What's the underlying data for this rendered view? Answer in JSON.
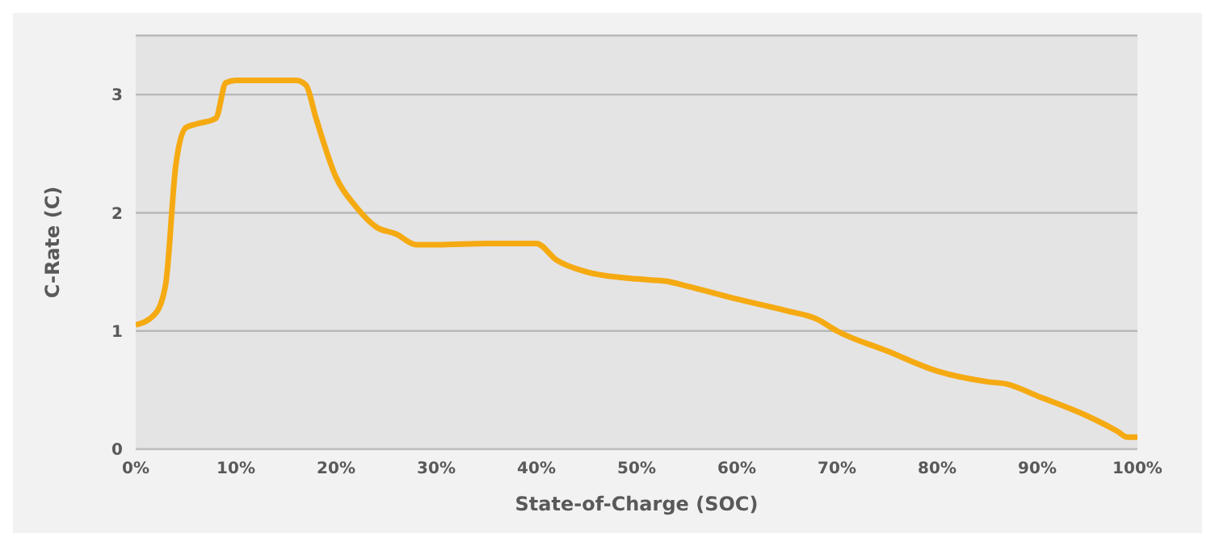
{
  "chart_data": {
    "type": "line",
    "xlabel": "State-of-Charge  (SOC)",
    "ylabel": "C-Rate (C)",
    "x": [
      0,
      2,
      3,
      4,
      5,
      6,
      8,
      9,
      10,
      16,
      17,
      18,
      20,
      22,
      24,
      26,
      28,
      30,
      35,
      40,
      42,
      45,
      50,
      53,
      55,
      60,
      65,
      68,
      70,
      75,
      80,
      85,
      87,
      90,
      95,
      98,
      99,
      100
    ],
    "series": [
      {
        "color": "#f5aa12",
        "values": [
          1.05,
          1.15,
          1.4,
          2.4,
          2.72,
          2.75,
          2.8,
          3.1,
          3.12,
          3.12,
          3.08,
          2.8,
          2.3,
          2.05,
          1.88,
          1.82,
          1.73,
          1.73,
          1.74,
          1.74,
          1.6,
          1.5,
          1.44,
          1.42,
          1.38,
          1.27,
          1.17,
          1.1,
          1.0,
          0.83,
          0.66,
          0.57,
          0.55,
          0.45,
          0.28,
          0.15,
          0.1,
          0.1
        ]
      }
    ],
    "xlim": [
      0,
      100
    ],
    "xticks": [
      {
        "value": 0,
        "label": "0%"
      },
      {
        "value": 10,
        "label": "10%"
      },
      {
        "value": 20,
        "label": "20%"
      },
      {
        "value": 30,
        "label": "30%"
      },
      {
        "value": 40,
        "label": "40%"
      },
      {
        "value": 50,
        "label": "50%"
      },
      {
        "value": 60,
        "label": "60%"
      },
      {
        "value": 70,
        "label": "70%"
      },
      {
        "value": 80,
        "label": "80%"
      },
      {
        "value": 90,
        "label": "90%"
      },
      {
        "value": 100,
        "label": "100%"
      }
    ],
    "ylim": [
      0,
      3.5
    ],
    "yticks": [
      0,
      1,
      2,
      3
    ],
    "grid": "y",
    "marker": "none",
    "line_style": "solid"
  }
}
